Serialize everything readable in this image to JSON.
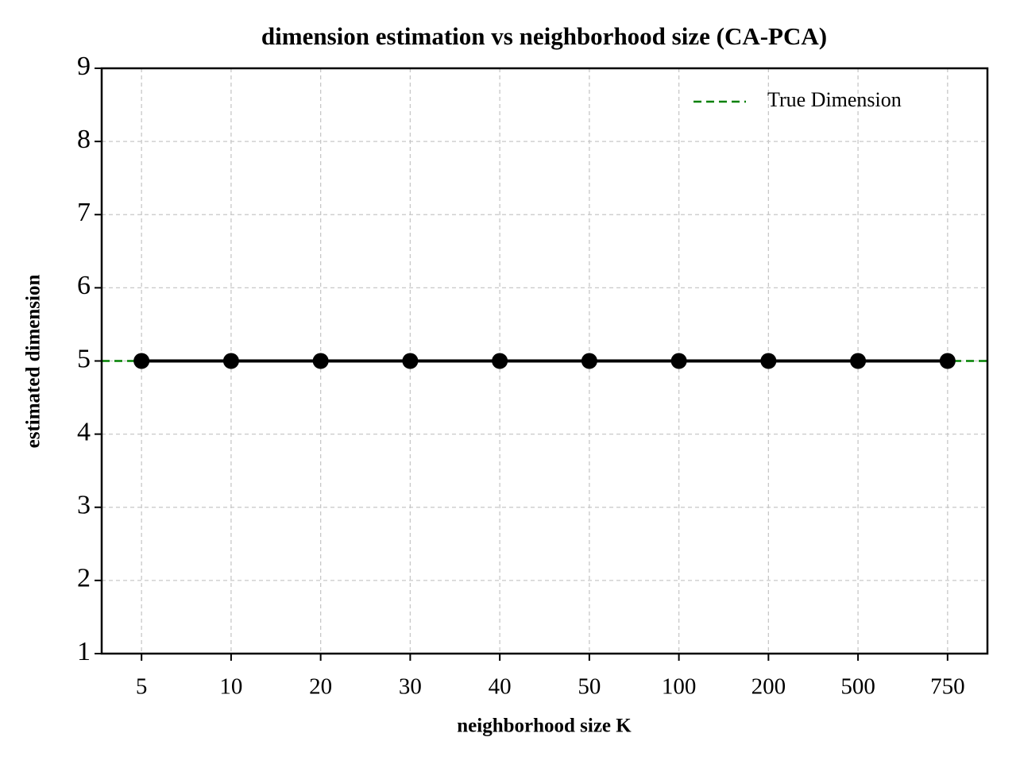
{
  "chart_data": {
    "type": "line",
    "title": "dimension estimation vs neighborhood size (CA-PCA)",
    "x_label": "neighborhood size K",
    "y_label": "estimated dimension",
    "categories": [
      "5",
      "10",
      "20",
      "30",
      "40",
      "50",
      "100",
      "200",
      "500",
      "750"
    ],
    "values": [
      5,
      5,
      5,
      5,
      5,
      5,
      5,
      5,
      5,
      5
    ],
    "color": "#000000",
    "reference_line": {
      "name": "True Dimension",
      "value": 5,
      "color": "#008000"
    },
    "ylim": [
      1,
      9
    ],
    "yticks": [
      1,
      2,
      3,
      4,
      5,
      6,
      7,
      8,
      9
    ],
    "grid": true,
    "legend": "upper right"
  }
}
